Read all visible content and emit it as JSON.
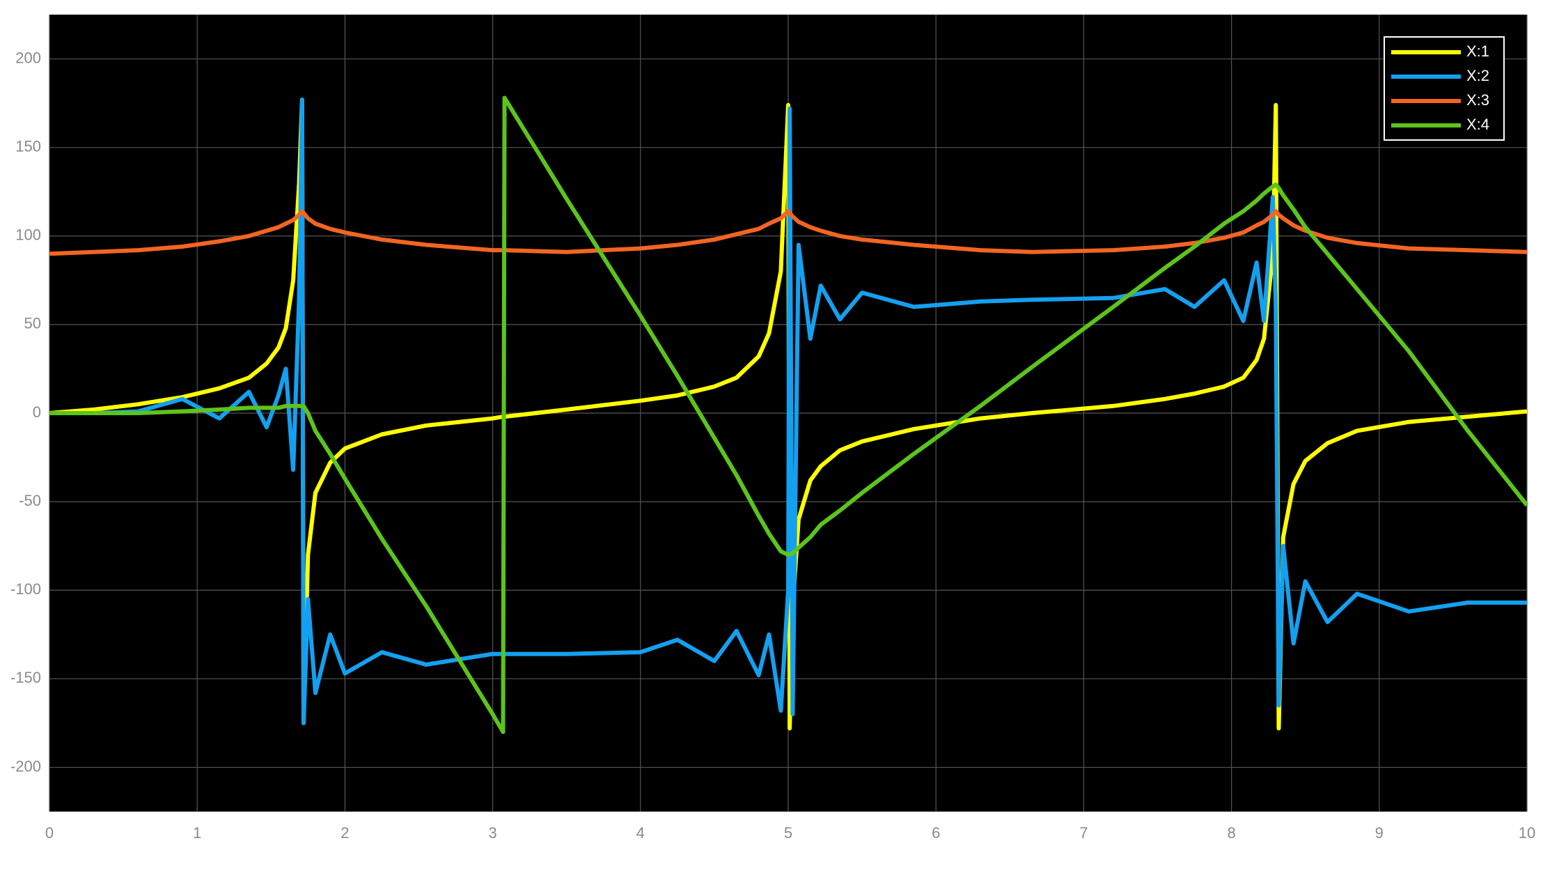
{
  "chart_data": {
    "type": "line",
    "x": [
      0,
      0.3,
      0.6,
      0.9,
      1.15,
      1.35,
      1.47,
      1.55,
      1.6,
      1.65,
      1.69,
      1.71,
      1.72,
      1.75,
      1.8,
      1.9,
      2.0,
      2.25,
      2.55,
      3.0,
      3.07,
      3.08,
      3.5,
      4.0,
      4.25,
      4.5,
      4.65,
      4.8,
      4.87,
      4.95,
      5.0,
      5.01,
      5.03,
      5.07,
      5.15,
      5.22,
      5.35,
      5.5,
      5.85,
      6.3,
      6.65,
      7.2,
      7.55,
      7.75,
      7.95,
      8.08,
      8.17,
      8.22,
      8.28,
      8.3,
      8.32,
      8.35,
      8.42,
      8.5,
      8.65,
      8.85,
      9.2,
      9.6,
      10
    ],
    "series": [
      {
        "name": "X:1",
        "color": "#ffff00",
        "values": [
          0,
          2,
          5,
          9,
          14,
          20,
          28,
          37,
          48,
          75,
          130,
          177,
          -175,
          -80,
          -45,
          -28,
          -20,
          -12,
          -7,
          -3,
          -2,
          -2,
          2,
          7,
          10,
          15,
          20,
          32,
          45,
          80,
          174,
          -178,
          -110,
          -60,
          -38,
          -30,
          -21,
          -16,
          -9,
          -3,
          0,
          4,
          8,
          11,
          15,
          20,
          30,
          42,
          90,
          174,
          -178,
          -70,
          -40,
          -27,
          -17,
          -10,
          -5,
          -2,
          1
        ]
      },
      {
        "name": "X:2",
        "color": "#14a0f0",
        "values": [
          0,
          0,
          1,
          8,
          -3,
          12,
          -8,
          10,
          25,
          -32,
          65,
          177,
          -175,
          -105,
          -158,
          -125,
          -147,
          -135,
          -142,
          -136,
          -136,
          -136,
          -136,
          -135,
          -128,
          -140,
          -123,
          -148,
          -125,
          -168,
          -100,
          172,
          -170,
          95,
          42,
          72,
          53,
          68,
          60,
          63,
          64,
          65,
          70,
          60,
          75,
          52,
          85,
          52,
          122,
          60,
          -165,
          -75,
          -130,
          -95,
          -118,
          -102,
          -112,
          -107,
          -107
        ]
      },
      {
        "name": "X:3",
        "color": "#f26522",
        "values": [
          90,
          91,
          92,
          94,
          97,
          100,
          103,
          105,
          107,
          109,
          112,
          114,
          113,
          110,
          107,
          104,
          102,
          98,
          95,
          92,
          92,
          92,
          91,
          93,
          95,
          98,
          101,
          104,
          107,
          110,
          114,
          113,
          111,
          108,
          105,
          103,
          100,
          98,
          95,
          92,
          91,
          92,
          94,
          96,
          99,
          102,
          106,
          108,
          112,
          114,
          112,
          110,
          106,
          103,
          99,
          96,
          93,
          92,
          91
        ]
      },
      {
        "name": "X:4",
        "color": "#5cc41c",
        "values": [
          0,
          0,
          0,
          1,
          2,
          3,
          3,
          3,
          4,
          4,
          4,
          4,
          4,
          0,
          -10,
          -23,
          -37,
          -71,
          -109,
          -170,
          -180,
          178,
          121,
          55,
          21,
          -14,
          -35,
          -58,
          -68,
          -78,
          -80,
          -80,
          -79,
          -76,
          -70,
          -63,
          -55,
          -45,
          -23,
          4,
          26,
          60,
          82,
          94,
          107,
          114,
          120,
          124,
          128,
          129,
          127,
          123,
          115,
          105,
          90,
          70,
          35,
          -10,
          -52
        ]
      }
    ],
    "xlim": [
      0,
      10
    ],
    "xticks": [
      0,
      1,
      2,
      3,
      4,
      5,
      6,
      7,
      8,
      9,
      10
    ],
    "ylim": [
      -225,
      225
    ],
    "yticks": [
      -200,
      -150,
      -100,
      -50,
      0,
      50,
      100,
      150,
      200
    ],
    "grid": true,
    "legend": "upper right"
  }
}
